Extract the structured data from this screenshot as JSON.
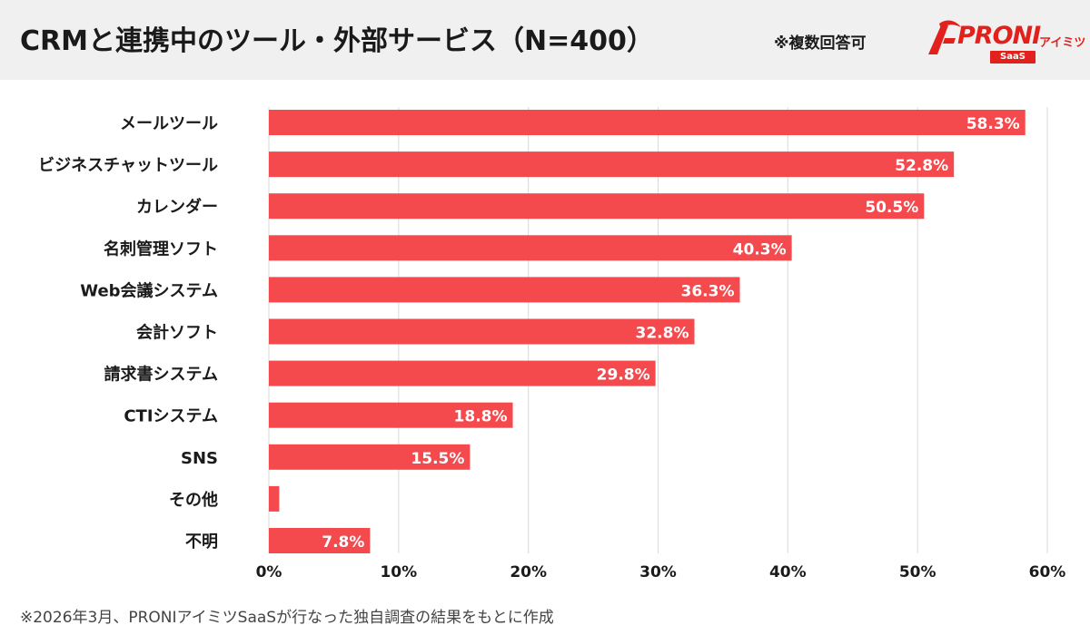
{
  "header": {
    "title": "CRMと連携中のツール・外部サービス（N=400）",
    "note": "※複数回答可",
    "logo_text": "PRONI",
    "logo_sub": "アイミツ",
    "logo_badge": "SaaS"
  },
  "footnote": "※2026年3月、PRONIアイミツSaaSが行なった独自調査の結果をもとに作成",
  "colors": {
    "bar": "#f44a4d",
    "brand": "#e2211c",
    "header_bg": "#f0f0f0",
    "grid": "#d9d9d9"
  },
  "chart_data": {
    "type": "bar",
    "orientation": "horizontal",
    "title": "CRMと連携中のツール・外部サービス（N=400）",
    "categories": [
      "メールツール",
      "ビジネスチャットツール",
      "カレンダー",
      "名刺管理ソフト",
      "Web会議システム",
      "会計ソフト",
      "請求書システム",
      "CTIシステム",
      "SNS",
      "その他",
      "不明"
    ],
    "values": [
      58.3,
      52.8,
      50.5,
      40.3,
      36.3,
      32.8,
      29.8,
      18.8,
      15.5,
      0.8,
      7.8
    ],
    "labels": [
      "58.3%",
      "52.8%",
      "50.5%",
      "40.3%",
      "36.3%",
      "32.8%",
      "29.8%",
      "18.8%",
      "15.5%",
      "",
      "7.8%"
    ],
    "xlim": [
      0,
      60
    ],
    "ticks": [
      0,
      10,
      20,
      30,
      40,
      50,
      60
    ],
    "tick_labels": [
      "0%",
      "10%",
      "20%",
      "30%",
      "40%",
      "50%",
      "60%"
    ],
    "grid": true,
    "xlabel": "",
    "ylabel": ""
  }
}
